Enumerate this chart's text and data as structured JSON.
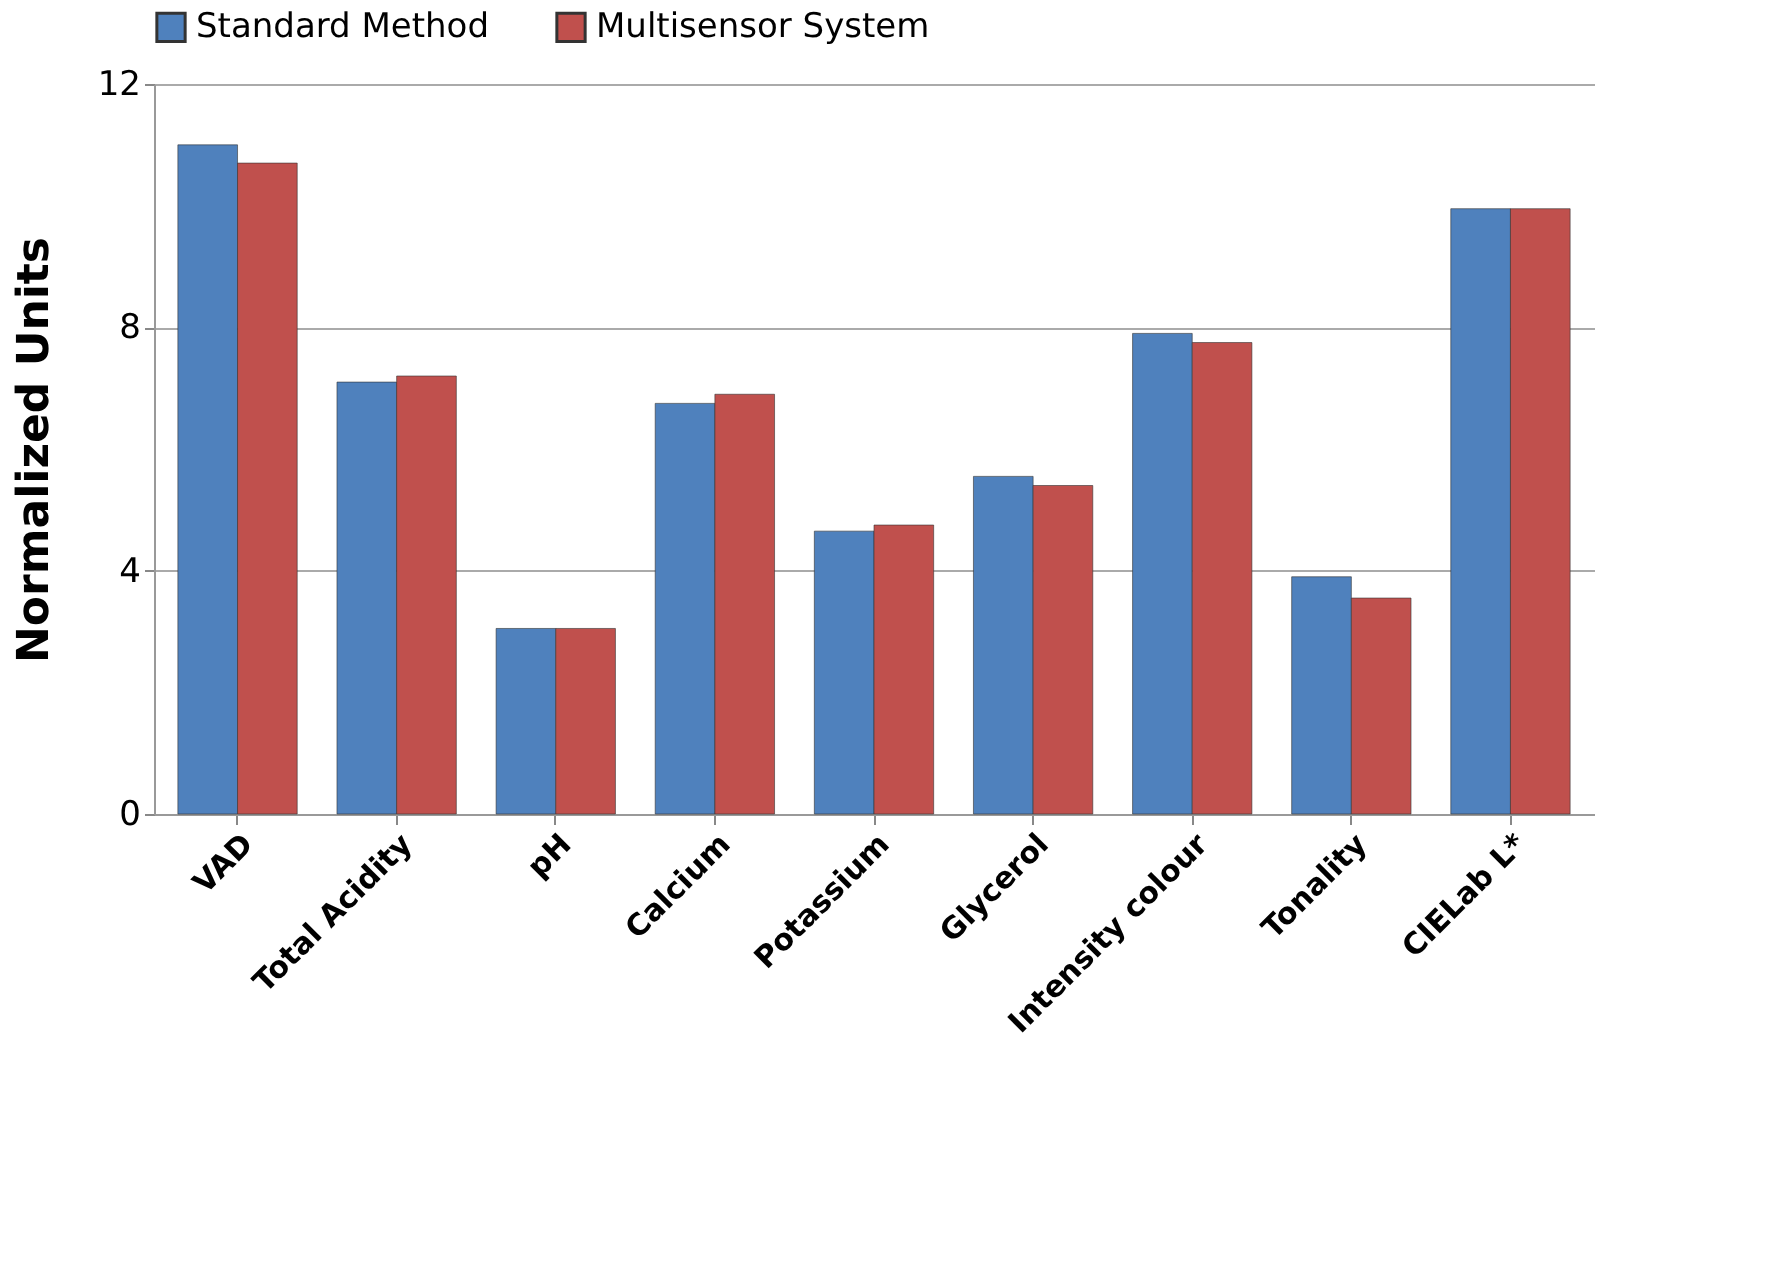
{
  "chart_data": {
    "type": "bar",
    "ylabel": "Normalized Units",
    "categories": [
      "VAD",
      "Total Acidity",
      "pH",
      "Calcium",
      "Potassium",
      "Glycerol",
      "Intensity colour",
      "Tonality",
      "CIELab L*"
    ],
    "series": [
      {
        "name": "Standard Method",
        "color": "#4f81bd",
        "values": [
          11.0,
          7.1,
          3.05,
          6.75,
          4.65,
          5.55,
          7.9,
          3.9,
          9.95
        ]
      },
      {
        "name": "Multisensor System",
        "color": "#c0504d",
        "values": [
          10.7,
          7.2,
          3.05,
          6.9,
          4.75,
          5.4,
          7.75,
          3.55,
          9.95
        ]
      }
    ],
    "ylim": [
      0,
      12
    ],
    "yticks": [
      0,
      4,
      8,
      12
    ],
    "grid": "y",
    "legend": "top"
  }
}
